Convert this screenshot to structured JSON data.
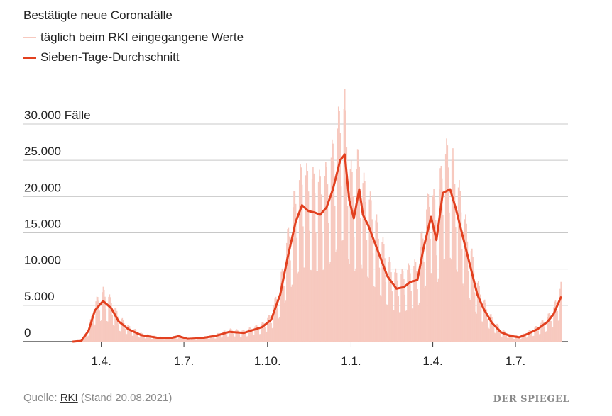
{
  "chart_data": {
    "type": "bar+line",
    "title": "Bestätigte neue Coronafälle",
    "series": [
      {
        "name": "täglich beim RKI eingegangene Werte",
        "type": "bar",
        "color": "#f7c9bf"
      },
      {
        "name": "Sieben-Tage-Durchschnitt",
        "type": "line",
        "color": "#e2401f"
      }
    ],
    "y_ticks": [
      {
        "value": 0,
        "label": "0"
      },
      {
        "value": 5000,
        "label": "5.000"
      },
      {
        "value": 10000,
        "label": "10.000"
      },
      {
        "value": 15000,
        "label": "15.000"
      },
      {
        "value": 20000,
        "label": "20.000"
      },
      {
        "value": 25000,
        "label": "25.000"
      },
      {
        "value": 30000,
        "label": "30.000 Fälle"
      }
    ],
    "ylim": [
      0,
      33000
    ],
    "x_ticks": [
      {
        "date": "2020-04-01",
        "label": "1.4."
      },
      {
        "date": "2020-07-01",
        "label": "1.7."
      },
      {
        "date": "2020-10-01",
        "label": "1.10."
      },
      {
        "date": "2021-01-01",
        "label": "1.1."
      },
      {
        "date": "2021-04-01",
        "label": "1.4."
      },
      {
        "date": "2021-07-01",
        "label": "1.7."
      }
    ],
    "xlim": [
      "2020-03-01",
      "2021-08-20"
    ],
    "seven_day_average": [
      [
        "2020-03-01",
        0
      ],
      [
        "2020-03-10",
        100
      ],
      [
        "2020-03-18",
        1500
      ],
      [
        "2020-03-25",
        4300
      ],
      [
        "2020-04-03",
        5600
      ],
      [
        "2020-04-12",
        4600
      ],
      [
        "2020-04-20",
        2800
      ],
      [
        "2020-05-01",
        1700
      ],
      [
        "2020-05-15",
        900
      ],
      [
        "2020-06-01",
        550
      ],
      [
        "2020-06-15",
        450
      ],
      [
        "2020-06-25",
        750
      ],
      [
        "2020-07-05",
        380
      ],
      [
        "2020-07-20",
        480
      ],
      [
        "2020-08-05",
        800
      ],
      [
        "2020-08-20",
        1350
      ],
      [
        "2020-09-05",
        1200
      ],
      [
        "2020-09-15",
        1600
      ],
      [
        "2020-09-25",
        2000
      ],
      [
        "2020-10-05",
        3000
      ],
      [
        "2020-10-15",
        6500
      ],
      [
        "2020-10-23",
        11500
      ],
      [
        "2020-11-01",
        16500
      ],
      [
        "2020-11-08",
        18800
      ],
      [
        "2020-11-15",
        18000
      ],
      [
        "2020-11-22",
        17800
      ],
      [
        "2020-11-28",
        17500
      ],
      [
        "2020-12-05",
        18500
      ],
      [
        "2020-12-12",
        21000
      ],
      [
        "2020-12-20",
        25000
      ],
      [
        "2020-12-25",
        25800
      ],
      [
        "2020-12-30",
        19500
      ],
      [
        "2021-01-04",
        17000
      ],
      [
        "2021-01-10",
        21000
      ],
      [
        "2021-01-14",
        17500
      ],
      [
        "2021-01-20",
        16000
      ],
      [
        "2021-02-01",
        12000
      ],
      [
        "2021-02-10",
        9000
      ],
      [
        "2021-02-20",
        7300
      ],
      [
        "2021-02-28",
        7500
      ],
      [
        "2021-03-07",
        8200
      ],
      [
        "2021-03-15",
        8500
      ],
      [
        "2021-03-22",
        13000
      ],
      [
        "2021-03-30",
        17200
      ],
      [
        "2021-04-05",
        14000
      ],
      [
        "2021-04-12",
        20500
      ],
      [
        "2021-04-20",
        21000
      ],
      [
        "2021-04-26",
        18500
      ],
      [
        "2021-05-03",
        15000
      ],
      [
        "2021-05-12",
        10500
      ],
      [
        "2021-05-20",
        6500
      ],
      [
        "2021-05-27",
        4500
      ],
      [
        "2021-06-05",
        2600
      ],
      [
        "2021-06-15",
        1300
      ],
      [
        "2021-06-25",
        800
      ],
      [
        "2021-07-05",
        600
      ],
      [
        "2021-07-15",
        1100
      ],
      [
        "2021-07-25",
        1700
      ],
      [
        "2021-08-05",
        2700
      ],
      [
        "2021-08-12",
        3800
      ],
      [
        "2021-08-20",
        6100
      ]
    ],
    "grid": true,
    "legend_placement": "top-left"
  },
  "source": {
    "prefix": "Quelle: ",
    "link": "RKI",
    "suffix": " (Stand 20.08.2021)"
  },
  "brand": "DER SPIEGEL"
}
